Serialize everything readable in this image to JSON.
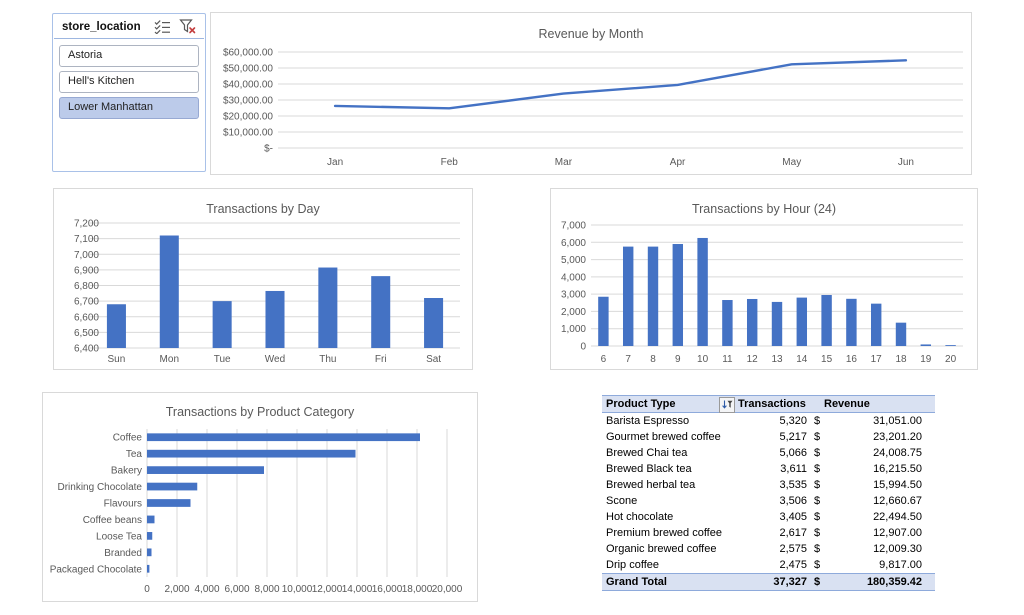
{
  "colors": {
    "accent": "#4472C4",
    "grid": "#D9D9D9",
    "axis_text": "#595959",
    "panel_border": "#D9D9D9",
    "slicer_border": "#A9C1E8",
    "slicer_selected_bg": "#BCCBEA",
    "table_header_bg": "#D9E1F2",
    "table_border": "#8EAADB"
  },
  "slicer": {
    "title": "store_location",
    "items": [
      {
        "label": "Astoria",
        "selected": false
      },
      {
        "label": "Hell's Kitchen",
        "selected": false
      },
      {
        "label": "Lower Manhattan",
        "selected": true
      }
    ]
  },
  "chart_data": [
    {
      "id": "revenue-by-month",
      "type": "line",
      "title": "Revenue by Month",
      "categories": [
        "Jan",
        "Feb",
        "Mar",
        "Apr",
        "May",
        "Jun"
      ],
      "values": [
        26300,
        24800,
        34000,
        39400,
        52300,
        54800
      ],
      "ylim": [
        0,
        60000
      ],
      "ytick_labels": [
        "$-",
        "$10,000.00",
        "$20,000.00",
        "$30,000.00",
        "$40,000.00",
        "$50,000.00",
        "$60,000.00"
      ],
      "grid": true,
      "legend": false
    },
    {
      "id": "transactions-by-day",
      "type": "bar",
      "title": "Transactions by Day",
      "categories": [
        "Sun",
        "Mon",
        "Tue",
        "Wed",
        "Thu",
        "Fri",
        "Sat"
      ],
      "values": [
        6680,
        7120,
        6700,
        6765,
        6915,
        6860,
        6720
      ],
      "ylim": [
        6400,
        7200
      ],
      "ytick_labels": [
        "6,400",
        "6,500",
        "6,600",
        "6,700",
        "6,800",
        "6,900",
        "7,000",
        "7,100",
        "7,200"
      ],
      "grid": true,
      "legend": false
    },
    {
      "id": "transactions-by-hour",
      "type": "bar",
      "title": "Transactions by Hour (24)",
      "categories": [
        "6",
        "7",
        "8",
        "9",
        "10",
        "11",
        "12",
        "13",
        "14",
        "15",
        "16",
        "17",
        "18",
        "19",
        "20"
      ],
      "values": [
        2850,
        5750,
        5750,
        5900,
        6250,
        2660,
        2720,
        2550,
        2800,
        2950,
        2730,
        2450,
        1350,
        90,
        50
      ],
      "ylim": [
        0,
        7000
      ],
      "ytick_labels": [
        "0",
        "1,000",
        "2,000",
        "3,000",
        "4,000",
        "5,000",
        "6,000",
        "7,000"
      ],
      "grid": true,
      "legend": false
    },
    {
      "id": "transactions-by-product-category",
      "type": "barh",
      "title": "Transactions by Product Category",
      "categories": [
        "Coffee",
        "Tea",
        "Bakery",
        "Drinking Chocolate",
        "Flavours",
        "Coffee beans",
        "Loose Tea",
        "Branded",
        "Packaged Chocolate"
      ],
      "values": [
        18200,
        13900,
        7800,
        3350,
        2900,
        500,
        350,
        300,
        160
      ],
      "xlim": [
        0,
        20000
      ],
      "xtick_labels": [
        "0",
        "2,000",
        "4,000",
        "6,000",
        "8,000",
        "10,000",
        "12,000",
        "14,000",
        "16,000",
        "18,000",
        "20,000"
      ],
      "grid": true,
      "legend": false
    }
  ],
  "table": {
    "headers": {
      "product": "Product Type",
      "transactions": "Transactions",
      "revenue": "Revenue"
    },
    "currency_symbol": "$",
    "rows": [
      {
        "product": "Barista Espresso",
        "transactions": "5,320",
        "revenue": "31,051.00"
      },
      {
        "product": "Gourmet brewed coffee",
        "transactions": "5,217",
        "revenue": "23,201.20"
      },
      {
        "product": "Brewed Chai tea",
        "transactions": "5,066",
        "revenue": "24,008.75"
      },
      {
        "product": "Brewed Black tea",
        "transactions": "3,611",
        "revenue": "16,215.50"
      },
      {
        "product": "Brewed herbal tea",
        "transactions": "3,535",
        "revenue": "15,994.50"
      },
      {
        "product": "Scone",
        "transactions": "3,506",
        "revenue": "12,660.67"
      },
      {
        "product": "Hot chocolate",
        "transactions": "3,405",
        "revenue": "22,494.50"
      },
      {
        "product": "Premium brewed coffee",
        "transactions": "2,617",
        "revenue": "12,907.00"
      },
      {
        "product": "Organic brewed coffee",
        "transactions": "2,575",
        "revenue": "12,009.30"
      },
      {
        "product": "Drip coffee",
        "transactions": "2,475",
        "revenue": "9,817.00"
      }
    ],
    "grand_total": {
      "product": "Grand Total",
      "transactions": "37,327",
      "revenue": "180,359.42"
    }
  }
}
